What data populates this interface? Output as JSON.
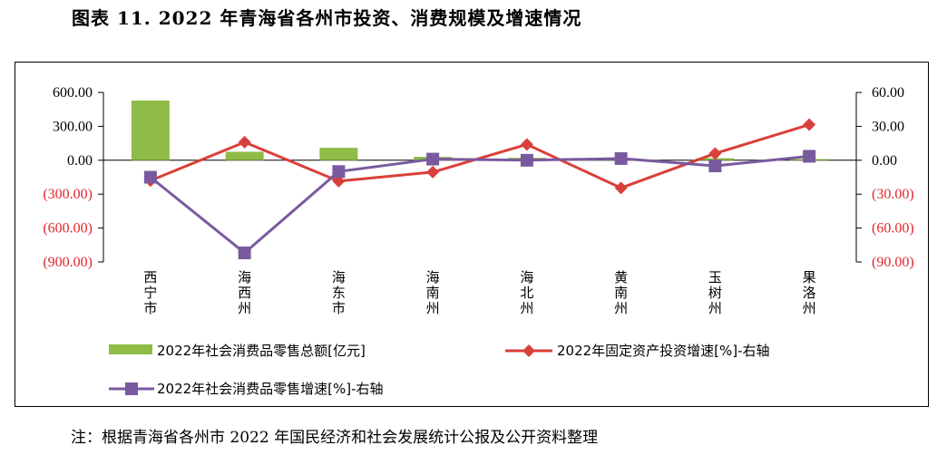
{
  "title": "图表 11. 2022 年青海省各州市投资、消费规模及增速情况",
  "note": "注：根据青海省各州市 2022 年国民经济和社会发展统计公报及公开资料整理",
  "colors": {
    "bar": "#8fbc47",
    "invest": "#d9403a",
    "consume_growth": "#7a5a9e",
    "negative": "#e0242a"
  },
  "chart_data": {
    "type": "bar+line",
    "categories": [
      "西宁市",
      "海西州",
      "海东市",
      "海南州",
      "海北州",
      "黄南州",
      "玉树州",
      "果洛州"
    ],
    "left_axis": {
      "ylim": [
        -900,
        600
      ],
      "ticks": [
        600,
        300,
        0,
        -300,
        -600,
        -900
      ],
      "tick_labels": [
        "600.00",
        "300.00",
        "0.00",
        "(300.00)",
        "(600.00)",
        "(900.00)"
      ]
    },
    "right_axis": {
      "ylim": [
        -90,
        60
      ],
      "ticks": [
        60,
        30,
        0,
        -30,
        -60,
        -90
      ],
      "tick_labels": [
        "60.00",
        "30.00",
        "0.00",
        "(30.00)",
        "(60.00)",
        "(90.00)"
      ]
    },
    "series": [
      {
        "name": "2022年社会消费品零售总额[亿元]",
        "type": "bar",
        "axis": "left",
        "values": [
          528,
          75,
          110,
          30,
          22,
          8,
          18,
          10
        ]
      },
      {
        "name": "2022年固定资产投资增速[%]-右轴",
        "type": "line",
        "axis": "right",
        "marker": "diamond",
        "values": [
          -18,
          16,
          -18.5,
          -10.5,
          14,
          -24.5,
          6,
          31.5
        ]
      },
      {
        "name": "2022年社会消费品零售增速[%]-右轴",
        "type": "line",
        "axis": "right",
        "marker": "square",
        "values": [
          -15,
          -82,
          -10,
          1,
          0,
          1.5,
          -5,
          3.5
        ]
      }
    ]
  }
}
